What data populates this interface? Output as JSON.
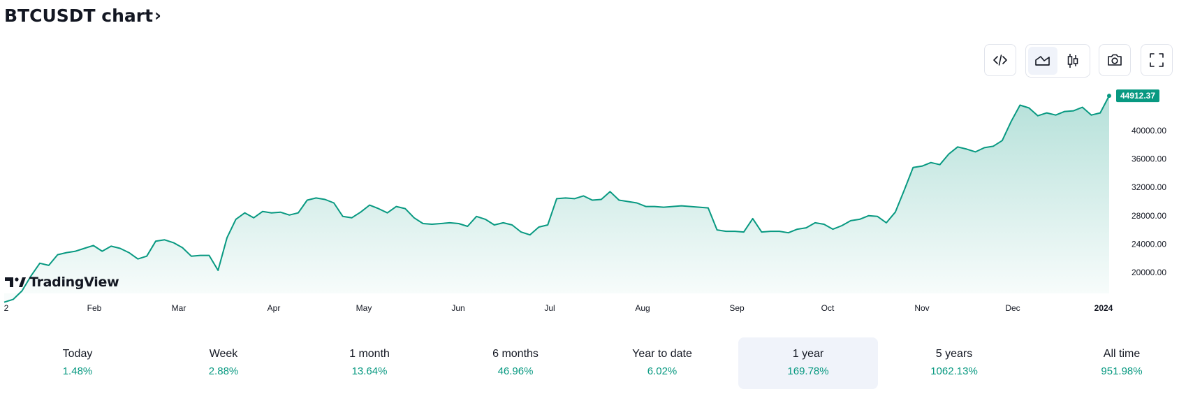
{
  "header": {
    "title": "BTCUSDT chart",
    "chevron": "›"
  },
  "toolbar": {
    "embed_icon": "code-icon",
    "line_chart_icon": "area-chart-icon",
    "candle_icon": "candlestick-icon",
    "snapshot_icon": "camera-icon",
    "fullscreen_icon": "fullscreen-icon"
  },
  "branding": {
    "logo_text": "TradingView"
  },
  "colors": {
    "line": "#089981",
    "price_tag_bg": "#089981",
    "accent_selected_bg": "#f0f3fa"
  },
  "chart_data": {
    "type": "area",
    "series": [
      {
        "values": [
          15800,
          16200,
          17400,
          19500,
          21300,
          21000,
          22500,
          22800,
          23000,
          23400,
          23800,
          23000,
          23700,
          23400,
          22800,
          21900,
          22300,
          24400,
          24600,
          24200,
          23500,
          22300,
          22400,
          22400,
          20300,
          24900,
          27500,
          28400,
          27700,
          28600,
          28400,
          28500,
          28100,
          28400,
          30200,
          30500,
          30300,
          29800,
          27900,
          27700,
          28500,
          29500,
          29000,
          28400,
          29300,
          29000,
          27700,
          26900,
          26800,
          26900,
          27000,
          26900,
          26500,
          27900,
          27500,
          26700,
          27000,
          26700,
          25700,
          25300,
          26400,
          26700,
          30400,
          30500,
          30400,
          30800,
          30200,
          30300,
          31400,
          30200,
          30000,
          29800,
          29300,
          29300,
          29200,
          29300,
          29400,
          29300,
          29200,
          29100,
          26000,
          25800,
          25800,
          25700,
          27600,
          25700,
          25800,
          25800,
          25600,
          26100,
          26300,
          27000,
          26800,
          26100,
          26600,
          27300,
          27500,
          28000,
          27900,
          27000,
          28500,
          31600,
          34800,
          35000,
          35500,
          35200,
          36700,
          37700,
          37400,
          37000,
          37600,
          37800,
          38600,
          41300,
          43600,
          43200,
          42100,
          42500,
          42200,
          42700,
          42800,
          43300,
          42200,
          42500,
          44912.37
        ]
      }
    ],
    "x_tick_labels": [
      "2",
      "Feb",
      "Mar",
      "Apr",
      "May",
      "Jun",
      "Jul",
      "Aug",
      "Sep",
      "Oct",
      "Nov",
      "Dec",
      "2024"
    ],
    "y_tick_labels": [
      "20000.00",
      "24000.00",
      "28000.00",
      "32000.00",
      "36000.00",
      "40000.00"
    ],
    "y_ticks": [
      20000,
      24000,
      28000,
      32000,
      36000,
      40000
    ],
    "ylim": [
      15000,
      46000
    ],
    "last_price_label": "44912.37",
    "grid": false
  },
  "periods": [
    {
      "label": "Today",
      "value": "1.48%"
    },
    {
      "label": "Week",
      "value": "2.88%"
    },
    {
      "label": "1 month",
      "value": "13.64%"
    },
    {
      "label": "6 months",
      "value": "46.96%"
    },
    {
      "label": "Year to date",
      "value": "6.02%"
    },
    {
      "label": "1 year",
      "value": "169.78%",
      "selected": true
    },
    {
      "label": "5 years",
      "value": "1062.13%"
    },
    {
      "label": "All time",
      "value": "951.98%"
    }
  ]
}
